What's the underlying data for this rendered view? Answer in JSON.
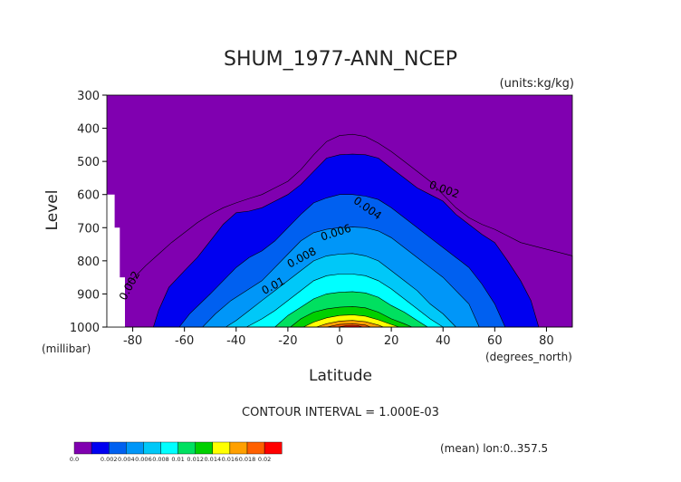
{
  "chart_data": {
    "type": "heatmap",
    "title": "SHUM_1977-ANN_NCEP",
    "units_label": "(units:kg/kg)",
    "ylabel": "Level",
    "yunit_label": "(millibar)",
    "xlabel": "Latitude",
    "xunit_label": "(degrees_north)",
    "xlim": [
      -90,
      90
    ],
    "ylim": [
      1000,
      300
    ],
    "xticks": [
      -80,
      -60,
      -40,
      -20,
      0,
      20,
      40,
      60,
      80
    ],
    "yticks": [
      300,
      400,
      500,
      600,
      700,
      800,
      900,
      1000
    ],
    "contour_interval_label": "CONTOUR INTERVAL = 1.000E-03",
    "footer_label": "(mean) lon:0..357.5",
    "contour_labels": [
      "0.002",
      "0.004",
      "0.006",
      "0.008",
      "0.01"
    ],
    "colorbar": {
      "labels": [
        "0.0",
        "0.002",
        "0.004",
        "0.006",
        "0.008",
        "0.01",
        "0.012",
        "0.014",
        "0.016",
        "0.018",
        "0.02"
      ],
      "colors": [
        "#8000b0",
        "#0000f0",
        "#0060f0",
        "#0096f8",
        "#00c8f8",
        "#00ffff",
        "#00e060",
        "#00d000",
        "#ffff00",
        "#ffa000",
        "#ff6000",
        "#ff0000"
      ]
    },
    "contour_levels": [
      {
        "value": 0.001,
        "color": "#8000b0",
        "boundary": [
          [
            -90,
            918
          ],
          [
            -86,
            905
          ],
          [
            -84,
            880
          ],
          [
            -80,
            855
          ],
          [
            -75,
            815
          ],
          [
            -70,
            780
          ],
          [
            -65,
            745
          ],
          [
            -60,
            715
          ],
          [
            -55,
            685
          ],
          [
            -50,
            660
          ],
          [
            -45,
            640
          ],
          [
            -40,
            625
          ],
          [
            -35,
            612
          ],
          [
            -30,
            600
          ],
          [
            -25,
            580
          ],
          [
            -20,
            560
          ],
          [
            -15,
            525
          ],
          [
            -10,
            480
          ],
          [
            -5,
            440
          ],
          [
            0,
            422
          ],
          [
            5,
            418
          ],
          [
            10,
            425
          ],
          [
            15,
            445
          ],
          [
            20,
            470
          ],
          [
            25,
            500
          ],
          [
            30,
            530
          ],
          [
            35,
            560
          ],
          [
            40,
            600
          ],
          [
            45,
            640
          ],
          [
            50,
            670
          ],
          [
            55,
            690
          ],
          [
            60,
            705
          ],
          [
            65,
            725
          ],
          [
            70,
            745
          ],
          [
            75,
            755
          ],
          [
            80,
            765
          ],
          [
            85,
            775
          ],
          [
            90,
            785
          ]
        ]
      },
      {
        "value": 0.002,
        "color": "#0000f0",
        "boundary": [
          [
            -72,
            1000
          ],
          [
            -70,
            950
          ],
          [
            -66,
            880
          ],
          [
            -60,
            830
          ],
          [
            -55,
            790
          ],
          [
            -50,
            740
          ],
          [
            -45,
            690
          ],
          [
            -40,
            655
          ],
          [
            -35,
            650
          ],
          [
            -30,
            640
          ],
          [
            -25,
            620
          ],
          [
            -20,
            600
          ],
          [
            -15,
            570
          ],
          [
            -10,
            530
          ],
          [
            -5,
            490
          ],
          [
            0,
            480
          ],
          [
            5,
            478
          ],
          [
            10,
            480
          ],
          [
            15,
            490
          ],
          [
            20,
            520
          ],
          [
            25,
            550
          ],
          [
            30,
            580
          ],
          [
            35,
            600
          ],
          [
            40,
            620
          ],
          [
            45,
            660
          ],
          [
            50,
            690
          ],
          [
            55,
            720
          ],
          [
            60,
            745
          ],
          [
            65,
            800
          ],
          [
            70,
            860
          ],
          [
            74,
            920
          ],
          [
            77,
            1000
          ]
        ]
      },
      {
        "value": 0.004,
        "color": "#0060f0",
        "boundary": [
          [
            -62,
            1000
          ],
          [
            -58,
            960
          ],
          [
            -50,
            900
          ],
          [
            -45,
            860
          ],
          [
            -40,
            820
          ],
          [
            -35,
            790
          ],
          [
            -30,
            770
          ],
          [
            -25,
            740
          ],
          [
            -20,
            700
          ],
          [
            -15,
            660
          ],
          [
            -10,
            625
          ],
          [
            -5,
            610
          ],
          [
            0,
            600
          ],
          [
            5,
            600
          ],
          [
            10,
            605
          ],
          [
            15,
            615
          ],
          [
            20,
            640
          ],
          [
            25,
            670
          ],
          [
            30,
            700
          ],
          [
            35,
            730
          ],
          [
            40,
            760
          ],
          [
            45,
            790
          ],
          [
            50,
            820
          ],
          [
            55,
            870
          ],
          [
            60,
            930
          ],
          [
            64,
            1000
          ]
        ]
      },
      {
        "value": 0.006,
        "color": "#0096f8",
        "boundary": [
          [
            -53,
            1000
          ],
          [
            -48,
            960
          ],
          [
            -42,
            920
          ],
          [
            -36,
            890
          ],
          [
            -30,
            860
          ],
          [
            -25,
            820
          ],
          [
            -20,
            780
          ],
          [
            -15,
            740
          ],
          [
            -10,
            715
          ],
          [
            -5,
            705
          ],
          [
            0,
            700
          ],
          [
            5,
            698
          ],
          [
            10,
            700
          ],
          [
            15,
            710
          ],
          [
            20,
            730
          ],
          [
            25,
            760
          ],
          [
            30,
            790
          ],
          [
            35,
            820
          ],
          [
            40,
            850
          ],
          [
            45,
            890
          ],
          [
            50,
            930
          ],
          [
            54,
            1000
          ]
        ]
      },
      {
        "value": 0.008,
        "color": "#00c8f8",
        "boundary": [
          [
            -44,
            1000
          ],
          [
            -40,
            980
          ],
          [
            -35,
            950
          ],
          [
            -30,
            920
          ],
          [
            -25,
            890
          ],
          [
            -20,
            860
          ],
          [
            -15,
            830
          ],
          [
            -10,
            800
          ],
          [
            -5,
            785
          ],
          [
            0,
            780
          ],
          [
            5,
            778
          ],
          [
            10,
            785
          ],
          [
            15,
            800
          ],
          [
            20,
            830
          ],
          [
            25,
            860
          ],
          [
            30,
            890
          ],
          [
            35,
            930
          ],
          [
            40,
            960
          ],
          [
            45,
            1000
          ]
        ]
      },
      {
        "value": 0.01,
        "color": "#00ffff",
        "boundary": [
          [
            -36,
            1000
          ],
          [
            -30,
            975
          ],
          [
            -25,
            950
          ],
          [
            -20,
            920
          ],
          [
            -15,
            890
          ],
          [
            -10,
            860
          ],
          [
            -5,
            845
          ],
          [
            0,
            840
          ],
          [
            5,
            840
          ],
          [
            10,
            845
          ],
          [
            15,
            860
          ],
          [
            20,
            885
          ],
          [
            25,
            915
          ],
          [
            30,
            945
          ],
          [
            35,
            975
          ],
          [
            40,
            1000
          ]
        ]
      },
      {
        "value": 0.012,
        "color": "#00e060",
        "boundary": [
          [
            -25,
            1000
          ],
          [
            -20,
            965
          ],
          [
            -15,
            940
          ],
          [
            -10,
            915
          ],
          [
            -5,
            900
          ],
          [
            0,
            895
          ],
          [
            5,
            893
          ],
          [
            10,
            897
          ],
          [
            15,
            910
          ],
          [
            20,
            935
          ],
          [
            25,
            955
          ],
          [
            30,
            980
          ],
          [
            34,
            1000
          ]
        ]
      },
      {
        "value": 0.013,
        "color": "#00d000",
        "boundary": [
          [
            -19,
            1000
          ],
          [
            -15,
            975
          ],
          [
            -10,
            955
          ],
          [
            -5,
            945
          ],
          [
            0,
            940
          ],
          [
            5,
            938
          ],
          [
            10,
            942
          ],
          [
            15,
            955
          ],
          [
            20,
            975
          ],
          [
            25,
            990
          ],
          [
            28,
            1000
          ]
        ]
      },
      {
        "value": 0.014,
        "color": "#ffff00",
        "boundary": [
          [
            -14,
            1000
          ],
          [
            -10,
            985
          ],
          [
            -5,
            972
          ],
          [
            0,
            965
          ],
          [
            5,
            963
          ],
          [
            10,
            967
          ],
          [
            15,
            978
          ],
          [
            20,
            992
          ],
          [
            23,
            1000
          ]
        ]
      },
      {
        "value": 0.016,
        "color": "#ffa000",
        "boundary": [
          [
            -9,
            1000
          ],
          [
            -5,
            990
          ],
          [
            0,
            982
          ],
          [
            5,
            980
          ],
          [
            10,
            984
          ],
          [
            15,
            994
          ],
          [
            17,
            1000
          ]
        ]
      },
      {
        "value": 0.017,
        "color": "#ff6000",
        "boundary": [
          [
            -5,
            1000
          ],
          [
            0,
            992
          ],
          [
            5,
            990
          ],
          [
            10,
            994
          ],
          [
            12,
            1000
          ]
        ]
      },
      {
        "value": 0.018,
        "color": "#ff0000",
        "boundary": [
          [
            -1,
            1000
          ],
          [
            3,
            996
          ],
          [
            7,
            996
          ],
          [
            9,
            1000
          ]
        ]
      }
    ],
    "missing_region": [
      [
        -90,
        1000
      ],
      [
        -90,
        600
      ],
      [
        -87,
        600
      ],
      [
        -87,
        700
      ],
      [
        -85,
        700
      ],
      [
        -85,
        850
      ],
      [
        -83,
        850
      ],
      [
        -83,
        1000
      ]
    ]
  }
}
